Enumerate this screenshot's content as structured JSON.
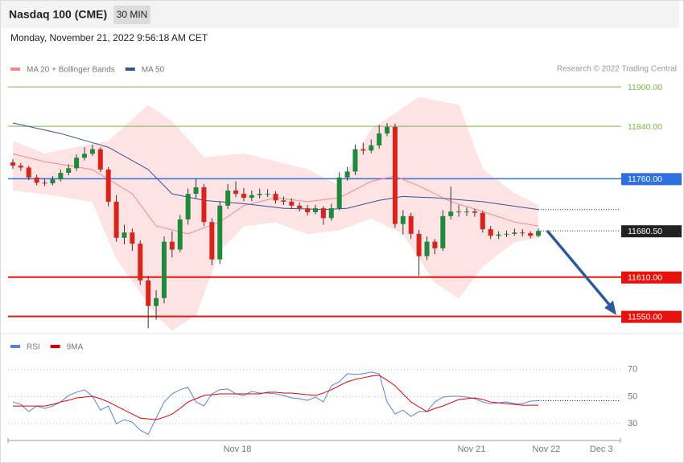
{
  "header": {
    "title": "Nasdaq 100 (CME)",
    "timeframe": "30 MIN",
    "date": "Monday, November 21, 2022 9:56:18 AM CET"
  },
  "chart_data": [
    {
      "type": "candlestick",
      "source": "Research © 2022 Trading Central",
      "up_color": "#1e8a3c",
      "down_color": "#d9241c",
      "xlim": [
        -0.6,
        76.4
      ],
      "ylim": [
        11530,
        11910
      ],
      "ohlc": [
        [
          11785,
          11790,
          11775,
          11780
        ],
        [
          11780,
          11784,
          11772,
          11777
        ],
        [
          11777,
          11780,
          11758,
          11762
        ],
        [
          11762,
          11766,
          11750,
          11754
        ],
        [
          11754,
          11760,
          11749,
          11753
        ],
        [
          11753,
          11764,
          11750,
          11759
        ],
        [
          11759,
          11774,
          11756,
          11769
        ],
        [
          11769,
          11782,
          11765,
          11776
        ],
        [
          11776,
          11797,
          11772,
          11792
        ],
        [
          11792,
          11808,
          11788,
          11798
        ],
        [
          11798,
          11812,
          11795,
          11805
        ],
        [
          11805,
          11808,
          11770,
          11774
        ],
        [
          11774,
          11778,
          11718,
          11725
        ],
        [
          11725,
          11735,
          11664,
          11670
        ],
        [
          11670,
          11690,
          11660,
          11678
        ],
        [
          11678,
          11684,
          11650,
          11661
        ],
        [
          11661,
          11666,
          11598,
          11605
        ],
        [
          11605,
          11612,
          11532,
          11566
        ],
        [
          11566,
          11590,
          11545,
          11578
        ],
        [
          11578,
          11672,
          11570,
          11664
        ],
        [
          11664,
          11680,
          11640,
          11652
        ],
        [
          11652,
          11705,
          11648,
          11698
        ],
        [
          11698,
          11745,
          11690,
          11737
        ],
        [
          11737,
          11760,
          11730,
          11747
        ],
        [
          11747,
          11752,
          11688,
          11694
        ],
        [
          11694,
          11700,
          11628,
          11637
        ],
        [
          11637,
          11726,
          11630,
          11719
        ],
        [
          11719,
          11752,
          11714,
          11742
        ],
        [
          11742,
          11756,
          11732,
          11737
        ],
        [
          11737,
          11746,
          11726,
          11731
        ],
        [
          11731,
          11742,
          11726,
          11735
        ],
        [
          11735,
          11745,
          11730,
          11737
        ],
        [
          11737,
          11744,
          11732,
          11737
        ],
        [
          11737,
          11741,
          11722,
          11727
        ],
        [
          11727,
          11733,
          11720,
          11725
        ],
        [
          11725,
          11730,
          11714,
          11719
        ],
        [
          11719,
          11724,
          11710,
          11715
        ],
        [
          11715,
          11720,
          11704,
          11709
        ],
        [
          11709,
          11720,
          11706,
          11715
        ],
        [
          11715,
          11718,
          11690,
          11700
        ],
        [
          11700,
          11722,
          11696,
          11715
        ],
        [
          11715,
          11770,
          11712,
          11762
        ],
        [
          11762,
          11778,
          11757,
          11771
        ],
        [
          11771,
          11812,
          11766,
          11805
        ],
        [
          11805,
          11815,
          11797,
          11803
        ],
        [
          11803,
          11820,
          11799,
          11811
        ],
        [
          11811,
          11842,
          11806,
          11829
        ],
        [
          11829,
          11845,
          11825,
          11839
        ],
        [
          11839,
          11844,
          11685,
          11691
        ],
        [
          11691,
          11712,
          11675,
          11703
        ],
        [
          11703,
          11708,
          11668,
          11676
        ],
        [
          11676,
          11682,
          11612,
          11642
        ],
        [
          11642,
          11672,
          11636,
          11664
        ],
        [
          11664,
          11668,
          11645,
          11654
        ],
        [
          11654,
          11712,
          11650,
          11703
        ],
        [
          11703,
          11748,
          11698,
          11710
        ],
        [
          11710,
          11720,
          11702,
          11710
        ],
        [
          11710,
          11716,
          11703,
          11710
        ],
        [
          11710,
          11714,
          11702,
          11708
        ],
        [
          11708,
          11711,
          11678,
          11683
        ],
        [
          11683,
          11688,
          11668,
          11673
        ],
        [
          11673,
          11680,
          11668,
          11675
        ],
        [
          11675,
          11681,
          11671,
          11676
        ],
        [
          11676,
          11684,
          11673,
          11678
        ],
        [
          11678,
          11683,
          11672,
          11677
        ],
        [
          11677,
          11680,
          11669,
          11673
        ],
        [
          11673,
          11684,
          11671,
          11680.5
        ]
      ],
      "series": [
        {
          "name": "MA 20 + Bollinger Bands",
          "color": "#f08a8a",
          "band_color": "#fde3e3",
          "x": [
            0,
            4,
            10,
            15,
            18,
            22,
            26,
            29,
            33,
            37,
            41,
            45,
            48,
            51,
            55,
            59,
            63,
            66
          ],
          "values": [
            11798,
            11786,
            11774,
            11737,
            11688,
            11676,
            11694,
            11719,
            11731,
            11725,
            11731,
            11756,
            11764,
            11749,
            11725,
            11710,
            11694,
            11688
          ],
          "upper": {
            "x": [
              0,
              4,
              12,
              17,
              20,
              24,
              29,
              37,
              41,
              45,
              51,
              56,
              59,
              63,
              66
            ],
            "values": [
              11817,
              11798,
              11817,
              11872,
              11847,
              11792,
              11798,
              11774,
              11749,
              11835,
              11884,
              11872,
              11774,
              11737,
              11719
            ]
          },
          "lower": {
            "x": [
              0,
              4,
              10,
              13,
              18,
              20,
              23,
              26,
              29,
              33,
              37,
              41,
              45,
              49,
              53,
              56,
              59,
              63,
              66
            ],
            "values": [
              11743,
              11737,
              11725,
              11639,
              11553,
              11529,
              11553,
              11651,
              11688,
              11694,
              11676,
              11682,
              11700,
              11676,
              11602,
              11578,
              11627,
              11664,
              11670
            ]
          }
        },
        {
          "name": "MA 50",
          "color": "#2f5597",
          "x": [
            0,
            6,
            12,
            17,
            20,
            24,
            29,
            34,
            39,
            42,
            46,
            49,
            53,
            59,
            66
          ],
          "values": [
            11845,
            11829,
            11808,
            11774,
            11737,
            11727,
            11722,
            11715,
            11713,
            11715,
            11727,
            11733,
            11731,
            11725,
            11713
          ]
        }
      ],
      "levels": [
        {
          "value": 11900,
          "label": "11900.00",
          "color": "#7ab648",
          "width": 1,
          "dash": false,
          "boxed": false
        },
        {
          "value": 11840,
          "label": "11840.00",
          "color": "#7ab648",
          "width": 1,
          "dash": false,
          "boxed": false
        },
        {
          "value": 11760,
          "label": "11760.00",
          "color": "#2f6fe0",
          "width": 1.5,
          "dash": false,
          "boxed": true
        },
        {
          "value": 11680.5,
          "label": "11680.50",
          "color": "#222222",
          "width": 1,
          "dash": true,
          "boxed": true
        },
        {
          "value": 11610,
          "label": "11610.00",
          "color": "#e8120c",
          "width": 2,
          "dash": false,
          "boxed": true
        },
        {
          "value": 11550,
          "label": "11550.00",
          "color": "#e8120c",
          "width": 2,
          "dash": false,
          "boxed": true
        }
      ]
    },
    {
      "type": "line",
      "xlim": [
        -0.6,
        76.4
      ],
      "ylim": [
        20,
        80
      ],
      "yticks": [
        30,
        50,
        70
      ],
      "grid": true,
      "xticks": [
        {
          "value": 28.2,
          "label": "Nov 18"
        },
        {
          "value": 57.6,
          "label": "Nov 21"
        },
        {
          "value": 67,
          "label": "Nov 22"
        },
        {
          "value": 73.9,
          "label": "Dec 3"
        }
      ],
      "series": [
        {
          "name": "RSI",
          "color": "#5b7fe0",
          "values": [
            46.1,
            44.3,
            39.0,
            43.1,
            41.3,
            43.1,
            46.1,
            50.9,
            53.3,
            55.1,
            50.3,
            40.1,
            43.1,
            30.0,
            33.0,
            31.2,
            25.2,
            22.2,
            34.2,
            46.1,
            52.1,
            55.1,
            56.9,
            46.1,
            43.1,
            52.1,
            55.1,
            55.7,
            52.1,
            50.9,
            53.9,
            52.7,
            52.7,
            52.1,
            50.9,
            49.1,
            48.5,
            47.3,
            49.7,
            46.1,
            58.1,
            61.0,
            67.0,
            66.4,
            67.0,
            68.2,
            67.0,
            46.1,
            37.2,
            40.1,
            35.4,
            39.0,
            39.0,
            46.1,
            49.7,
            50.3,
            50.3,
            49.7,
            48.5,
            46.1,
            44.9,
            45.5,
            46.1,
            44.9,
            44.9,
            46.7,
            47.0
          ]
        },
        {
          "name": "9MA",
          "color": "#e00000",
          "values": [
            43.1,
            43.1,
            43.1,
            43.1,
            43.1,
            44.3,
            46.1,
            47.3,
            49.1,
            49.7,
            50.3,
            48.5,
            46.1,
            43.1,
            40.1,
            37.2,
            34.2,
            33.6,
            33.0,
            34.8,
            37.2,
            41.3,
            46.1,
            48.5,
            50.9,
            51.5,
            52.1,
            52.1,
            52.1,
            52.1,
            52.1,
            52.1,
            53.3,
            53.3,
            52.7,
            52.7,
            52.1,
            51.5,
            50.9,
            52.7,
            55.1,
            58.1,
            61.0,
            62.8,
            64.0,
            65.2,
            65.8,
            62.2,
            58.1,
            52.1,
            46.1,
            42.5,
            39.0,
            41.3,
            43.1,
            45.5,
            47.9,
            48.5,
            49.1,
            47.9,
            46.1,
            45.5,
            44.9,
            44.3,
            43.7,
            43.7,
            43.7
          ]
        }
      ]
    }
  ]
}
